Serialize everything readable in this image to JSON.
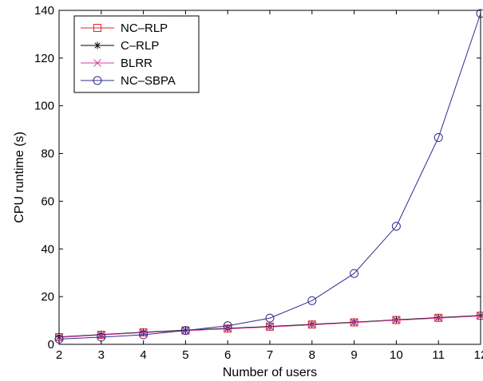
{
  "chart_data": {
    "type": "line",
    "xlabel": "Number of users",
    "ylabel": "CPU runtime (s)",
    "xlim": [
      2,
      12
    ],
    "ylim": [
      0,
      140
    ],
    "xticks": [
      2,
      3,
      4,
      5,
      6,
      7,
      8,
      9,
      10,
      11,
      12
    ],
    "yticks": [
      0,
      20,
      40,
      60,
      80,
      100,
      120,
      140
    ],
    "grid": false,
    "legend_position": "top-left",
    "series": [
      {
        "name": "NC–RLP",
        "marker": "square",
        "color": "#e8202a",
        "x": [
          2,
          3,
          4,
          5,
          6,
          7,
          8,
          9,
          10,
          11,
          12
        ],
        "y": [
          3.0,
          4.0,
          5.0,
          5.8,
          6.6,
          7.4,
          8.3,
          9.2,
          10.2,
          11.1,
          12.0
        ]
      },
      {
        "name": "C–RLP",
        "marker": "asterisk",
        "color": "#000000",
        "x": [
          2,
          3,
          4,
          5,
          6,
          7,
          8,
          9,
          10,
          11,
          12
        ],
        "y": [
          3.1,
          4.1,
          5.1,
          5.9,
          6.7,
          7.5,
          8.4,
          9.3,
          10.3,
          11.2,
          12.1
        ]
      },
      {
        "name": "BLRR",
        "marker": "x",
        "color": "#d63fa3",
        "x": [
          2,
          3,
          4,
          5,
          6,
          7,
          8,
          9,
          10,
          11,
          12
        ],
        "y": [
          2.9,
          3.9,
          4.9,
          5.7,
          6.5,
          7.3,
          8.2,
          9.1,
          10.1,
          11.0,
          11.9
        ]
      },
      {
        "name": "NC–SBPA",
        "marker": "circle",
        "color": "#2d2d8f",
        "x": [
          2,
          3,
          4,
          5,
          6,
          7,
          8,
          9,
          10,
          11,
          12
        ],
        "y": [
          2.2,
          3.0,
          4.0,
          5.8,
          7.8,
          11.0,
          18.3,
          29.7,
          49.5,
          86.7,
          138.7
        ]
      }
    ]
  }
}
